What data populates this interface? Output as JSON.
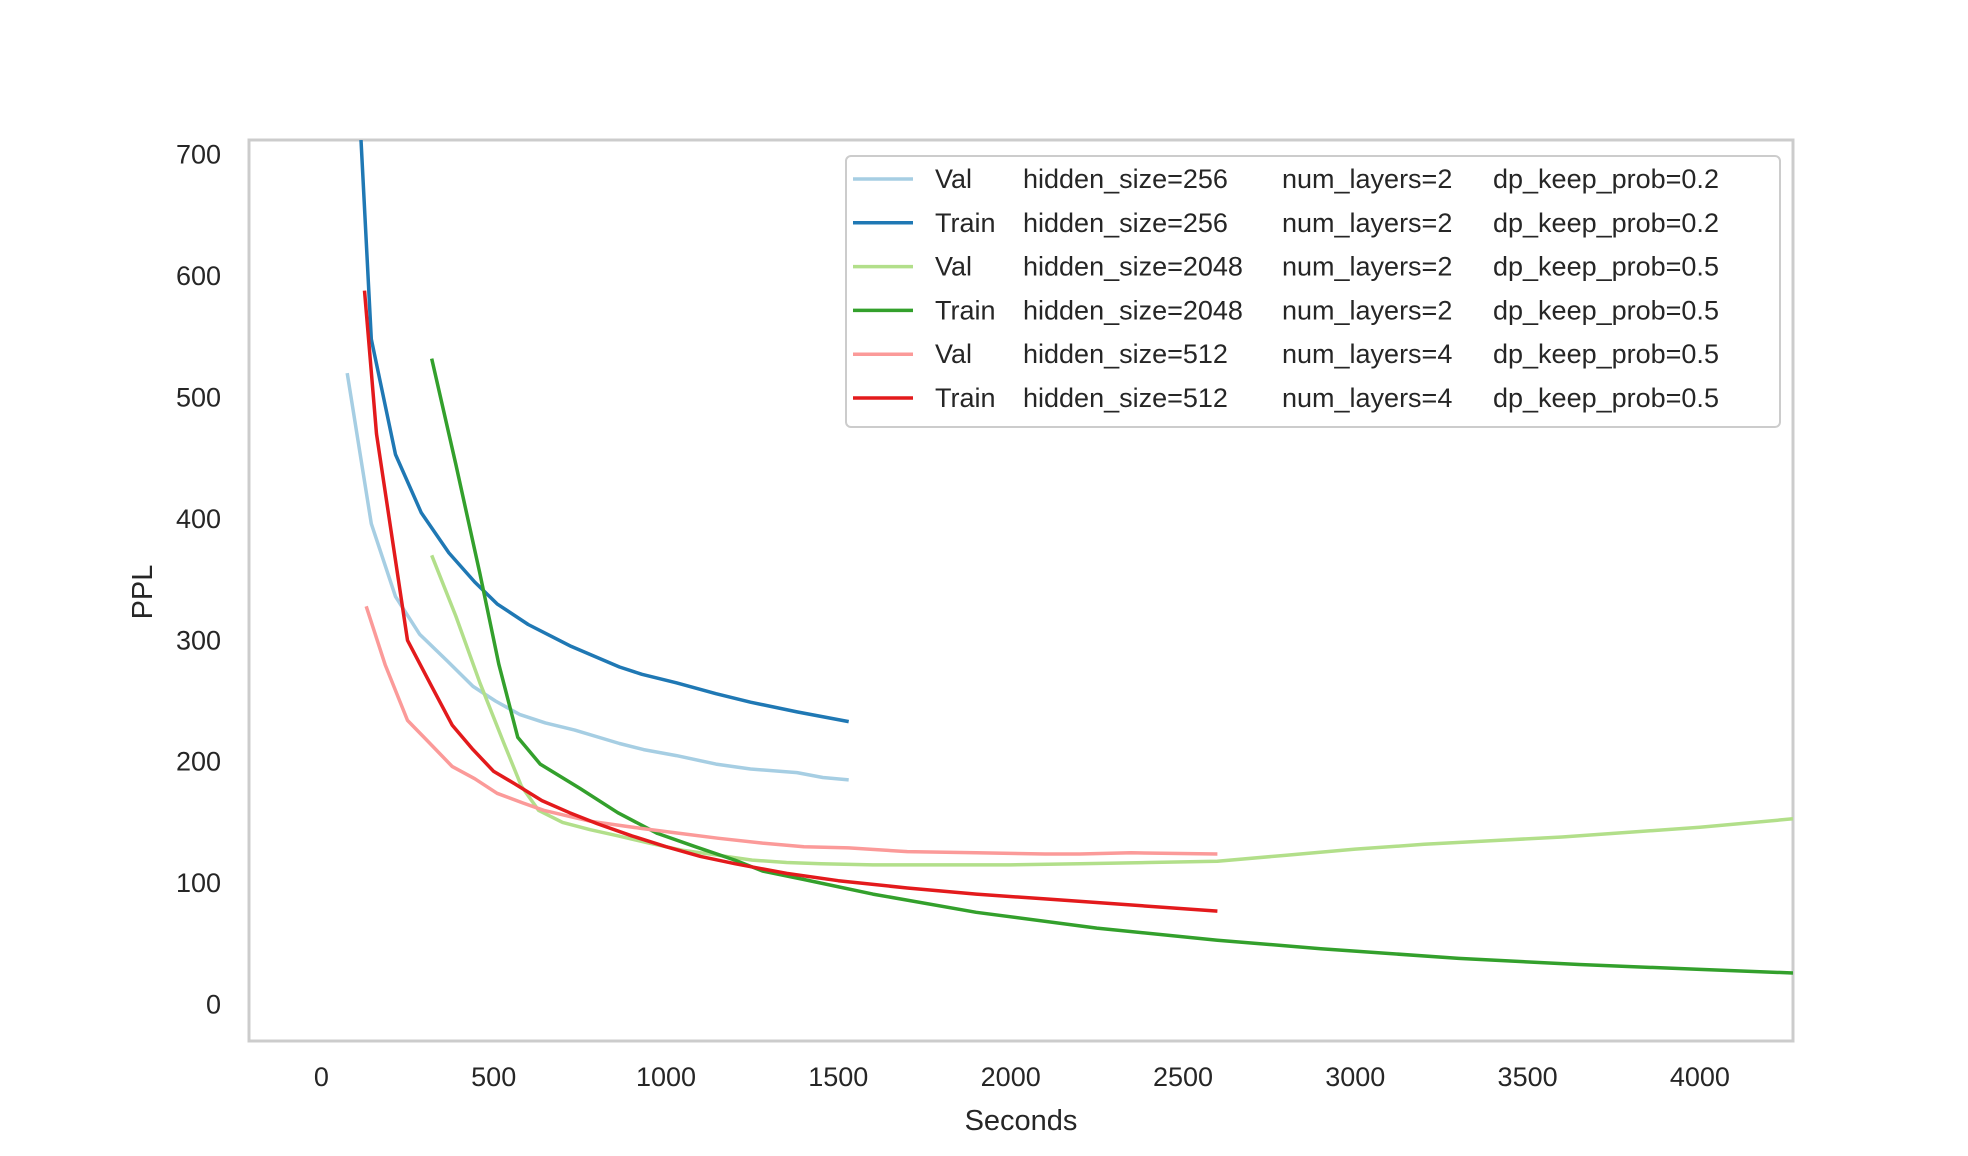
{
  "chart_data": {
    "type": "line",
    "title": "",
    "xlabel": "Seconds",
    "ylabel": "PPL",
    "xlim": [
      -210,
      4270
    ],
    "ylim": [
      -30,
      712
    ],
    "xticks": [
      0,
      500,
      1000,
      1500,
      2000,
      2500,
      3000,
      3500,
      4000
    ],
    "yticks": [
      0,
      100,
      200,
      300,
      400,
      500,
      600,
      700
    ],
    "grid": false,
    "legend_position": "top-right",
    "series": [
      {
        "name": "Val",
        "config": {
          "hidden_size": "hidden_size=256",
          "num_layers": "num_layers=2",
          "dp_keep_prob": "dp_keep_prob=0.2"
        },
        "color": "#a6cee3",
        "x": [
          75,
          145,
          215,
          285,
          365,
          440,
          505,
          575,
          650,
          735,
          865,
          935,
          1030,
          1145,
          1245,
          1380,
          1455,
          1530
        ],
        "y": [
          520,
          396,
          336,
          305,
          283,
          262,
          250,
          239,
          232,
          226,
          215,
          210,
          205,
          198,
          194,
          191,
          187,
          185
        ]
      },
      {
        "name": "Train",
        "config": {
          "hidden_size": "hidden_size=256",
          "num_layers": "num_layers=2",
          "dp_keep_prob": "dp_keep_prob=0.2"
        },
        "color": "#1f78b4",
        "x": [
          115,
          145,
          215,
          290,
          370,
          445,
          510,
          600,
          725,
          865,
          930,
          1030,
          1145,
          1245,
          1380,
          1530
        ],
        "y": [
          712,
          548,
          453,
          405,
          372,
          348,
          330,
          313,
          295,
          278,
          272,
          265,
          256,
          249,
          241,
          233
        ]
      },
      {
        "name": "Val",
        "config": {
          "hidden_size": "hidden_size=2048",
          "num_layers": "num_layers=2",
          "dp_keep_prob": "dp_keep_prob=0.5"
        },
        "color": "#b2df8a",
        "x": [
          320,
          390,
          460,
          530,
          580,
          630,
          700,
          780,
          860,
          950,
          1050,
          1150,
          1250,
          1350,
          1450,
          1600,
          1800,
          2000,
          2200,
          2400,
          2600,
          2800,
          3000,
          3200,
          3400,
          3600,
          3800,
          4000,
          4270
        ],
        "y": [
          370,
          320,
          265,
          215,
          180,
          160,
          150,
          144,
          139,
          133,
          127,
          123,
          119,
          117,
          116,
          115,
          115,
          115,
          116,
          117,
          118,
          123,
          128,
          132,
          135,
          138,
          142,
          146,
          153
        ]
      },
      {
        "name": "Train",
        "config": {
          "hidden_size": "hidden_size=2048",
          "num_layers": "num_layers=2",
          "dp_keep_prob": "dp_keep_prob=0.5"
        },
        "color": "#33a02c",
        "x": [
          320,
          390,
          460,
          515,
          570,
          635,
          750,
          860,
          975,
          1085,
          1200,
          1280,
          1400,
          1600,
          1900,
          2250,
          2600,
          2900,
          3300,
          3650,
          4000,
          4270
        ],
        "y": [
          532,
          445,
          355,
          280,
          220,
          198,
          178,
          158,
          141,
          130,
          119,
          110,
          103,
          91,
          76,
          63,
          53,
          46,
          38,
          33,
          29,
          26
        ]
      },
      {
        "name": "Val",
        "config": {
          "hidden_size": "hidden_size=512",
          "num_layers": "num_layers=4",
          "dp_keep_prob": "dp_keep_prob=0.5"
        },
        "color": "#fb9a99",
        "x": [
          130,
          185,
          250,
          305,
          380,
          445,
          510,
          585,
          645,
          720,
          780,
          855,
          930,
          1040,
          1150,
          1280,
          1400,
          1530,
          1700,
          1900,
          2100,
          2200,
          2350,
          2600
        ],
        "y": [
          328,
          280,
          234,
          218,
          196,
          186,
          174,
          166,
          160,
          155,
          151,
          148,
          145,
          141,
          137,
          133,
          130,
          129,
          126,
          125,
          124,
          124,
          125,
          124
        ]
      },
      {
        "name": "Train",
        "config": {
          "hidden_size": "hidden_size=512",
          "num_layers": "num_layers=4",
          "dp_keep_prob": "dp_keep_prob=0.5"
        },
        "color": "#e31a1c",
        "x": [
          125,
          160,
          250,
          320,
          380,
          440,
          500,
          560,
          640,
          720,
          800,
          900,
          1000,
          1100,
          1200,
          1350,
          1500,
          1700,
          1900,
          2100,
          2300,
          2600
        ],
        "y": [
          588,
          470,
          300,
          262,
          230,
          210,
          192,
          182,
          168,
          158,
          149,
          139,
          130,
          122,
          116,
          108,
          102,
          96,
          91,
          87,
          83,
          77
        ]
      }
    ]
  }
}
